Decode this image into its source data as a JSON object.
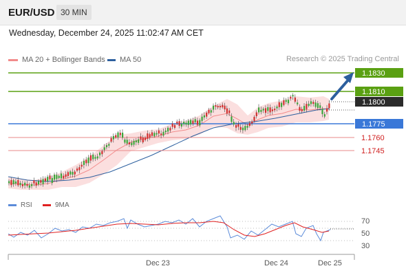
{
  "header": {
    "symbol": "EUR/USD",
    "timeframe": "30 MIN"
  },
  "datetime": "Wednesday, December 24, 2025 11:02:47 AM CET",
  "legend": {
    "ma20": {
      "label": "MA 20 + Bollinger Bands",
      "color": "#f28b8b"
    },
    "ma50": {
      "label": "MA 50",
      "color": "#2c5f9e"
    }
  },
  "credit": "Research © 2025 Trading Central",
  "rsi_legend": {
    "rsi": {
      "label": "RSI",
      "color": "#5b8bd9"
    },
    "ma": {
      "label": "9MA",
      "color": "#e02020"
    }
  },
  "levels": [
    {
      "label": "1.1830",
      "style": "green-box"
    },
    {
      "label": "1.1810",
      "style": "green-box"
    },
    {
      "label": "1.1800",
      "style": "dark-box"
    },
    {
      "label": "1.1775",
      "style": "blue-box"
    },
    {
      "label": "1.1760",
      "style": "red-text"
    },
    {
      "label": "1.1745",
      "style": "red-text"
    }
  ],
  "rsi_axis": [
    "70",
    "50",
    "30"
  ],
  "x_axis": [
    "Dec 23",
    "Dec 24",
    "Dec 25"
  ],
  "colors": {
    "green": "#5aa012",
    "blue": "#3a78d8",
    "red": "#e88a8a",
    "candle_up": "#3aa63a",
    "candle_down": "#d03030",
    "band_fill": "#fbdcdc",
    "arrow": "#2c5f9e"
  }
}
